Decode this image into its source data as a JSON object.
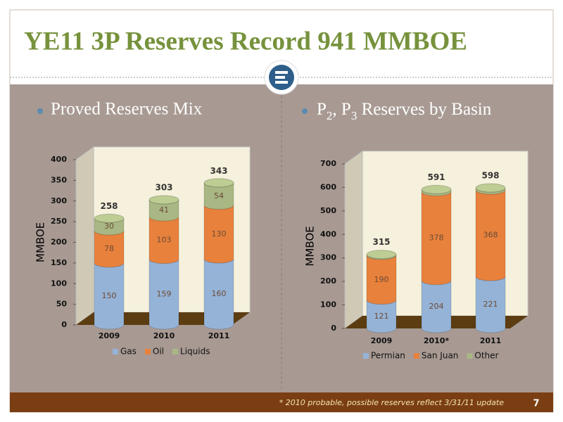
{
  "slide": {
    "title": "YE11 3P Reserves Record 941 MMBOE",
    "footnote": "* 2010 probable, possible reserves reflect 3/31/11 update",
    "page_number": "7"
  },
  "chart_data": [
    {
      "type": "stacked-bar",
      "title": "Proved Reserves Mix",
      "y_label": "MMBOE",
      "categories": [
        "2009",
        "2010",
        "2011"
      ],
      "series": [
        {
          "name": "Gas",
          "color": "#95b3d7",
          "values": [
            150,
            159,
            160
          ]
        },
        {
          "name": "Oil",
          "color": "#e8813c",
          "values": [
            78,
            103,
            130
          ]
        },
        {
          "name": "Liquids",
          "color": "#a9b784",
          "values": [
            30,
            41,
            54
          ]
        }
      ],
      "totals": [
        258,
        303,
        343
      ],
      "ylim": [
        0,
        400
      ],
      "yticks": [
        0,
        50,
        100,
        150,
        200,
        250,
        300,
        350,
        400
      ],
      "legend": "bottom"
    },
    {
      "type": "stacked-bar",
      "title": "P2, P3 Reserves by Basin",
      "y_label": "MMBOE",
      "categories": [
        "2009",
        "2010*",
        "2011"
      ],
      "series": [
        {
          "name": "Permian",
          "color": "#95b3d7",
          "values": [
            121,
            204,
            221
          ]
        },
        {
          "name": "San Juan",
          "color": "#e8813c",
          "values": [
            190,
            378,
            368
          ]
        },
        {
          "name": "Other",
          "color": "#a9b784",
          "values": [
            4,
            9,
            9
          ]
        }
      ],
      "totals": [
        315,
        591,
        598
      ],
      "ylim": [
        0,
        700
      ],
      "yticks": [
        0,
        100,
        200,
        300,
        400,
        500,
        600,
        700
      ],
      "legend": "bottom"
    }
  ]
}
